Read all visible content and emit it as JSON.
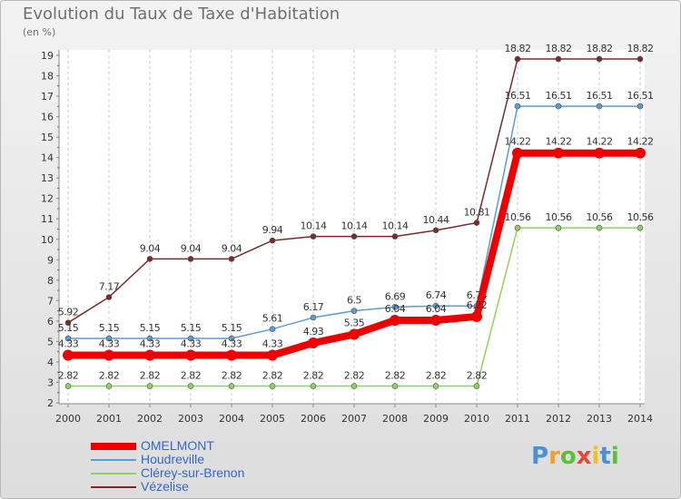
{
  "header": {
    "title": "Evolution du Taux de Taxe d'Habitation",
    "unit": "(en %)"
  },
  "logo": {
    "text": "Proxiti",
    "colors": [
      "#4a90d9",
      "#f0a030",
      "#5bbf3a",
      "#e04a3a",
      "#f0c020",
      "#4a90d9",
      "#5bbf3a"
    ]
  },
  "chart_data": {
    "type": "line",
    "x": [
      "2000",
      "2001",
      "2002",
      "2003",
      "2004",
      "2005",
      "2006",
      "2007",
      "2008",
      "2009",
      "2010",
      "2011",
      "2012",
      "2013",
      "2014"
    ],
    "ylim": [
      2,
      19
    ],
    "yticks": [
      "2",
      "3",
      "4",
      "5",
      "6",
      "7",
      "8",
      "9",
      "10",
      "11",
      "12",
      "13",
      "14",
      "15",
      "16",
      "17",
      "18",
      "19"
    ],
    "grid": "dashed vertical",
    "legend_position": "bottom-left",
    "series": [
      {
        "name": "Vézelise",
        "color": "#7a2a2a",
        "values": [
          5.92,
          7.17,
          9.04,
          9.04,
          9.04,
          9.94,
          10.14,
          10.14,
          10.14,
          10.44,
          10.81,
          18.82,
          18.82,
          18.82,
          18.82
        ],
        "labels": [
          "5.92",
          "7.17",
          "9.04",
          "9.04",
          "9.04",
          "9.94",
          "10.14",
          "10.14",
          "10.14",
          "10.44",
          "10.81",
          "18.82",
          "18.82",
          "18.82",
          "18.82"
        ]
      },
      {
        "name": "Houdreville",
        "color": "#5b9bd5",
        "values": [
          5.15,
          5.15,
          5.15,
          5.15,
          5.15,
          5.61,
          6.17,
          6.5,
          6.69,
          6.74,
          6.74,
          16.51,
          16.51,
          16.51,
          16.51
        ],
        "labels": [
          "5.15",
          "5.15",
          "5.15",
          "5.15",
          "5.15",
          "5.61",
          "6.17",
          "6.5",
          "6.69",
          "6.74",
          "6.74",
          "16.51",
          "16.51",
          "16.51",
          "16.51"
        ]
      },
      {
        "name": "Clérey-sur-Brenon",
        "color": "#8fd35a",
        "values": [
          2.82,
          2.82,
          2.82,
          2.82,
          2.82,
          2.82,
          2.82,
          2.82,
          2.82,
          2.82,
          2.82,
          10.56,
          10.56,
          10.56,
          10.56
        ],
        "labels": [
          "2.82",
          "2.82",
          "2.82",
          "2.82",
          "2.82",
          "2.82",
          "2.82",
          "2.82",
          "2.82",
          "2.82",
          "2.82",
          "10.56",
          "10.56",
          "10.56",
          "10.56"
        ]
      },
      {
        "name": "OMELMONT",
        "color": "#ee0000",
        "values": [
          4.33,
          4.33,
          4.33,
          4.33,
          4.33,
          4.33,
          4.93,
          5.35,
          6.04,
          6.04,
          6.22,
          14.22,
          14.22,
          14.22,
          14.22
        ],
        "labels": [
          "4.33",
          "4.33",
          "4.33",
          "4.33",
          "4.33",
          "4.33",
          "4.93",
          "5.35",
          "6.04",
          "6.04",
          "6.22",
          "14.22",
          "14.22",
          "14.22",
          "14.22"
        ]
      }
    ],
    "legend": [
      "OMELMONT",
      "Houdreville",
      "Clérey-sur-Brenon",
      "Vézelise"
    ]
  }
}
